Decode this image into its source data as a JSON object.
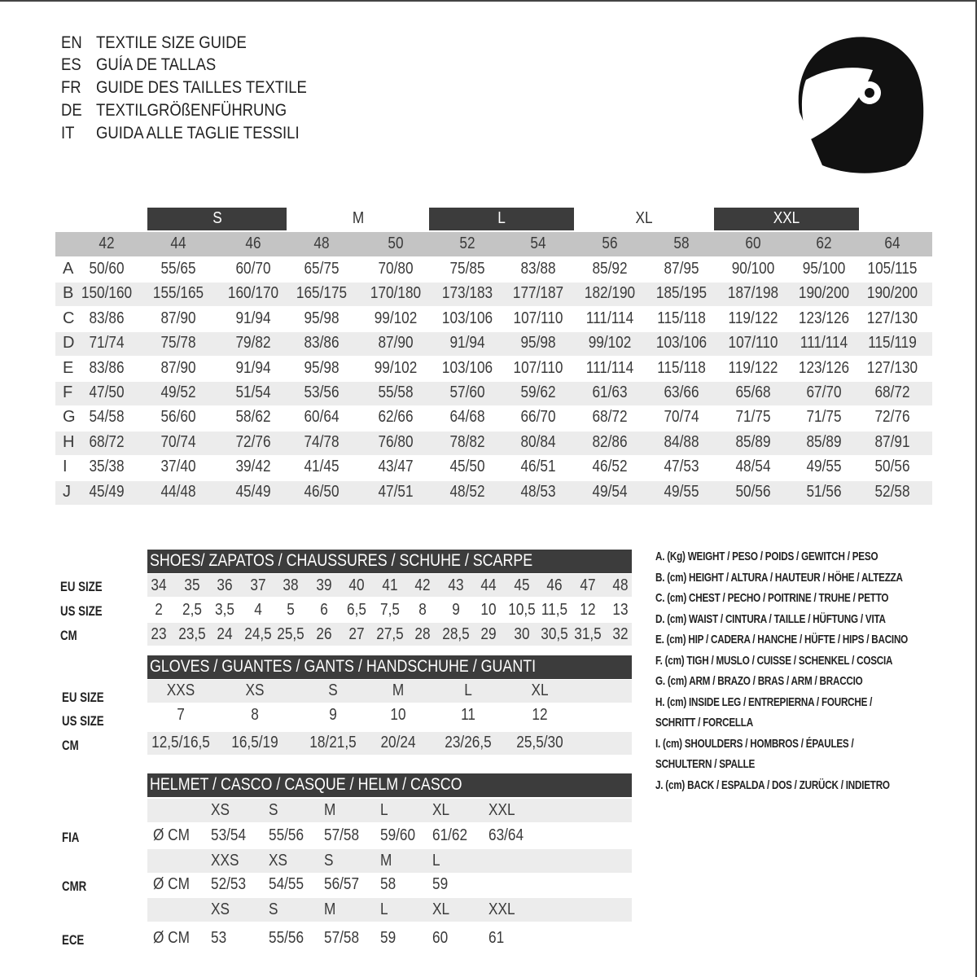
{
  "titles": [
    {
      "code": "EN",
      "text": "TEXTILE SIZE GUIDE"
    },
    {
      "code": "ES",
      "text": "GUÍA DE TALLAS"
    },
    {
      "code": "FR",
      "text": "GUIDE DES TAILLES TEXTILE"
    },
    {
      "code": "DE",
      "text": "TEXTILGRÖßENFÜHRUNG"
    },
    {
      "code": "IT",
      "text": "GUIDA ALLE TAGLIE TESSILI"
    }
  ],
  "logo_icon": "helmet-icon",
  "colors": {
    "dark_band": "#3c3c3c",
    "header_gray": "#c4c4c4",
    "row_gray": "#ececec"
  },
  "textile": {
    "size_groups": [
      "S",
      "M",
      "L",
      "XL",
      "XXL"
    ],
    "eu_sizes": [
      "42",
      "44",
      "46",
      "48",
      "50",
      "52",
      "54",
      "56",
      "58",
      "60",
      "62",
      "64"
    ],
    "rows": [
      {
        "key": "A",
        "values": [
          "50/60",
          "55/65",
          "60/70",
          "65/75",
          "70/80",
          "75/85",
          "83/88",
          "85/92",
          "87/95",
          "90/100",
          "95/100",
          "105/115"
        ]
      },
      {
        "key": "B",
        "values": [
          "150/160",
          "155/165",
          "160/170",
          "165/175",
          "170/180",
          "173/183",
          "177/187",
          "182/190",
          "185/195",
          "187/198",
          "190/200",
          "190/200"
        ]
      },
      {
        "key": "C",
        "values": [
          "83/86",
          "87/90",
          "91/94",
          "95/98",
          "99/102",
          "103/106",
          "107/110",
          "111/114",
          "115/118",
          "119/122",
          "123/126",
          "127/130"
        ]
      },
      {
        "key": "D",
        "values": [
          "71/74",
          "75/78",
          "79/82",
          "83/86",
          "87/90",
          "91/94",
          "95/98",
          "99/102",
          "103/106",
          "107/110",
          "111/114",
          "115/119"
        ]
      },
      {
        "key": "E",
        "values": [
          "83/86",
          "87/90",
          "91/94",
          "95/98",
          "99/102",
          "103/106",
          "107/110",
          "111/114",
          "115/118",
          "119/122",
          "123/126",
          "127/130"
        ]
      },
      {
        "key": "F",
        "values": [
          "47/50",
          "49/52",
          "51/54",
          "53/56",
          "55/58",
          "57/60",
          "59/62",
          "61/63",
          "63/66",
          "65/68",
          "67/70",
          "68/72"
        ]
      },
      {
        "key": "G",
        "values": [
          "54/58",
          "56/60",
          "58/62",
          "60/64",
          "62/66",
          "64/68",
          "66/70",
          "68/72",
          "70/74",
          "71/75",
          "71/75",
          "72/76"
        ]
      },
      {
        "key": "H",
        "values": [
          "68/72",
          "70/74",
          "72/76",
          "74/78",
          "76/80",
          "78/82",
          "80/84",
          "82/86",
          "84/88",
          "85/89",
          "85/89",
          "87/91"
        ]
      },
      {
        "key": "I",
        "values": [
          "35/38",
          "37/40",
          "39/42",
          "41/45",
          "43/47",
          "45/50",
          "46/51",
          "46/52",
          "47/53",
          "48/54",
          "49/55",
          "50/56"
        ]
      },
      {
        "key": "J",
        "values": [
          "45/49",
          "44/48",
          "45/49",
          "46/50",
          "47/51",
          "48/52",
          "48/53",
          "49/54",
          "49/55",
          "50/56",
          "51/56",
          "52/58"
        ]
      }
    ]
  },
  "shoes": {
    "title": "SHOES/ ZAPATOS / CHAUSSURES / SCHUHE / SCARPE",
    "rows": [
      {
        "label": "EU SIZE",
        "values": [
          "34",
          "35",
          "36",
          "37",
          "38",
          "39",
          "40",
          "41",
          "42",
          "43",
          "44",
          "45",
          "46",
          "47",
          "48"
        ]
      },
      {
        "label": "US SIZE",
        "values": [
          "2",
          "2,5",
          "3,5",
          "4",
          "5",
          "6",
          "6,5",
          "7,5",
          "8",
          "9",
          "10",
          "10,5",
          "11,5",
          "12",
          "13"
        ]
      },
      {
        "label": "CM",
        "values": [
          "23",
          "23,5",
          "24",
          "24,5",
          "25,5",
          "26",
          "27",
          "27,5",
          "28",
          "28,5",
          "29",
          "30",
          "30,5",
          "31,5",
          "32"
        ]
      }
    ]
  },
  "gloves": {
    "title": "GLOVES / GUANTES / GANTS / HANDSCHUHE / GUANTI",
    "rows": [
      {
        "label": "EU SIZE",
        "values": [
          "XXS",
          "XS",
          "S",
          "M",
          "L",
          "XL"
        ]
      },
      {
        "label": "US SIZE",
        "values": [
          "7",
          "8",
          "9",
          "10",
          "11",
          "12"
        ]
      },
      {
        "label": "CM",
        "values": [
          "12,5/16,5",
          "16,5/19",
          "18/21,5",
          "20/24",
          "23/26,5",
          "25,5/30"
        ]
      }
    ]
  },
  "helmet": {
    "title": "HELMET / CASCO / CASQUE / HELM / CASCO",
    "unit": "Ø CM",
    "standards": [
      {
        "label": "FIA",
        "sizes": [
          "XS",
          "S",
          "M",
          "L",
          "XL",
          "XXL"
        ],
        "values": [
          "53/54",
          "55/56",
          "57/58",
          "59/60",
          "61/62",
          "63/64"
        ]
      },
      {
        "label": "CMR",
        "sizes": [
          "XXS",
          "XS",
          "S",
          "M",
          "L"
        ],
        "values": [
          "52/53",
          "54/55",
          "56/57",
          "58",
          "59"
        ]
      },
      {
        "label": "ECE",
        "sizes": [
          "XS",
          "S",
          "M",
          "L",
          "XL",
          "XXL"
        ],
        "values": [
          "53",
          "55/56",
          "57/58",
          "59",
          "60",
          "61"
        ]
      }
    ]
  },
  "legend": [
    "A. (Kg) WEIGHT / PESO / POIDS / GEWITCH / PESO",
    "B. (cm) HEIGHT / ALTURA / HAUTEUR / HÖHE / ALTEZZA",
    "C. (cm) CHEST / PECHO / POITRINE / TRUHE / PETTO",
    "D. (cm) WAIST / CINTURA / TAILLE / HÜFTUNG / VITA",
    "E. (cm) HIP / CADERA / HANCHE / HÜFTE / HIPS /  BACINO",
    "F.  (cm) TIGH / MUSLO / CUISSE / SCHENKEL / COSCIA",
    "G. (cm) ARM  / BRAZO / BRAS / ARM / BRACCIO",
    "H. (cm) INSIDE LEG / ENTREPIERNA / FOURCHE /",
    "SCHRITT / FORCELLA",
    "I.  (cm) SHOULDERS / HOMBROS / ÉPAULES /",
    "SCHULTERN / SPALLE",
    "J. (cm) BACK / ESPALDA / DOS / ZURÜCK / INDIETRO"
  ]
}
